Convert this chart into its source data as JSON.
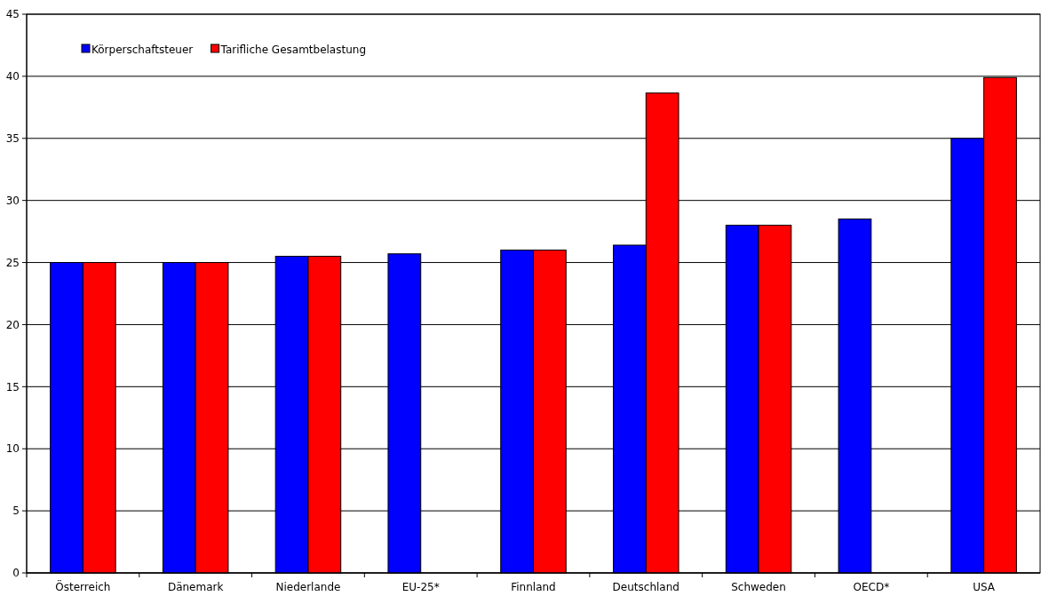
{
  "chart_data": {
    "type": "bar",
    "categories": [
      "Österreich",
      "Dänemark",
      "Niederlande",
      "EU-25*",
      "Finnland",
      "Deutschland",
      "Schweden",
      "OECD*",
      "USA"
    ],
    "series": [
      {
        "name": "Körperschaftsteuer",
        "color": "#0000ff",
        "values": [
          25,
          25,
          25.5,
          25.7,
          26,
          26.4,
          28,
          28.5,
          35
        ]
      },
      {
        "name": "Tarifliche Gesamtbelastung",
        "color": "#ff0000",
        "values": [
          25,
          25,
          25.5,
          null,
          26,
          38.65,
          28,
          null,
          39.9
        ]
      }
    ],
    "ylim": [
      0,
      45
    ],
    "yticks": [
      0,
      5,
      10,
      15,
      20,
      25,
      30,
      35,
      40,
      45
    ],
    "grid": "y",
    "legend": "top left"
  }
}
